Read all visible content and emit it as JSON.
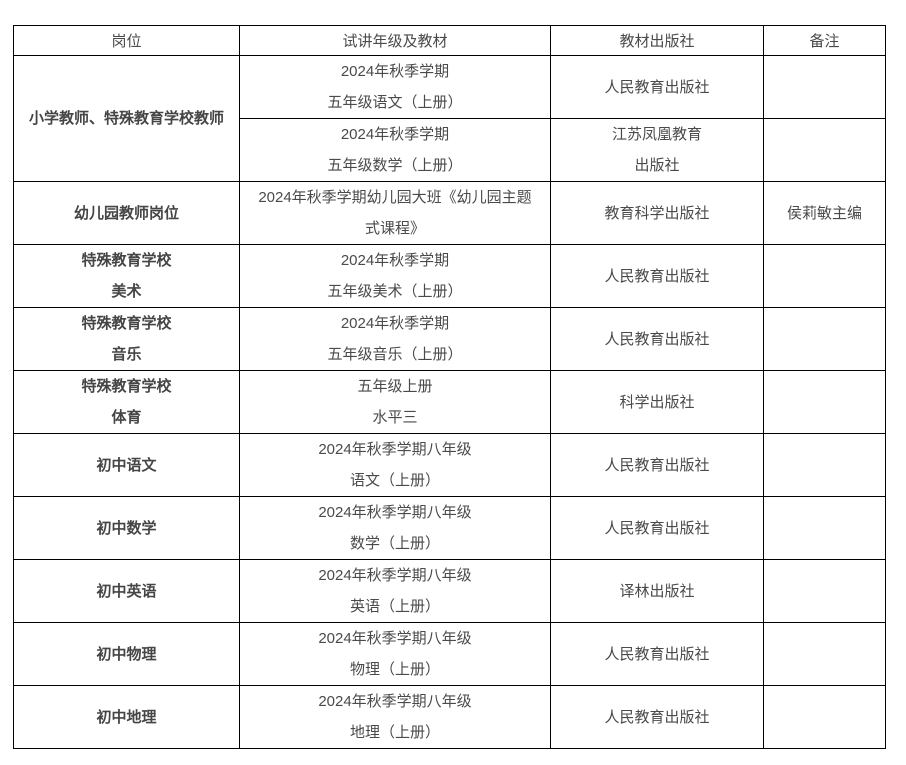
{
  "colors": {
    "background": "#ffffff",
    "border": "#000000",
    "text": "#4a4a4a",
    "position_text": "#454545"
  },
  "table": {
    "columns": [
      {
        "label": "岗位"
      },
      {
        "label": "试讲年级及教材"
      },
      {
        "label": "教材出版社"
      },
      {
        "label": "备注"
      }
    ],
    "rows": [
      {
        "position_lines": [
          "小学教师、特殊教育学校教师"
        ],
        "position_rowspan": 2,
        "material_lines": [
          "2024年秋季学期",
          "五年级语文（上册）"
        ],
        "publisher_lines": [
          "人民教育出版社"
        ],
        "remark_lines": []
      },
      {
        "material_lines": [
          "2024年秋季学期",
          "五年级数学（上册）"
        ],
        "publisher_lines": [
          "江苏凤凰教育",
          "出版社"
        ],
        "remark_lines": []
      },
      {
        "position_lines": [
          "幼儿园教师岗位"
        ],
        "material_lines": [
          "2024年秋季学期幼儿园大班《幼儿园主题",
          "式课程》"
        ],
        "publisher_lines": [
          "教育科学出版社"
        ],
        "remark_lines": [
          "侯莉敏主编"
        ]
      },
      {
        "position_lines": [
          "特殊教育学校",
          "美术"
        ],
        "material_lines": [
          "2024年秋季学期",
          "五年级美术（上册）"
        ],
        "publisher_lines": [
          "人民教育出版社"
        ],
        "remark_lines": []
      },
      {
        "position_lines": [
          "特殊教育学校",
          "音乐"
        ],
        "material_lines": [
          "2024年秋季学期",
          "五年级音乐（上册）"
        ],
        "publisher_lines": [
          "人民教育出版社"
        ],
        "remark_lines": []
      },
      {
        "position_lines": [
          "特殊教育学校",
          "体育"
        ],
        "material_lines": [
          "五年级上册",
          "水平三"
        ],
        "publisher_lines": [
          "科学出版社"
        ],
        "remark_lines": []
      },
      {
        "position_lines": [
          "初中语文"
        ],
        "material_lines": [
          "2024年秋季学期八年级",
          "语文（上册）"
        ],
        "publisher_lines": [
          "人民教育出版社"
        ],
        "remark_lines": []
      },
      {
        "position_lines": [
          "初中数学"
        ],
        "material_lines": [
          "2024年秋季学期八年级",
          "数学（上册）"
        ],
        "publisher_lines": [
          "人民教育出版社"
        ],
        "remark_lines": []
      },
      {
        "position_lines": [
          "初中英语"
        ],
        "material_lines": [
          "2024年秋季学期八年级",
          "英语（上册）"
        ],
        "publisher_lines": [
          "译林出版社"
        ],
        "remark_lines": []
      },
      {
        "position_lines": [
          "初中物理"
        ],
        "material_lines": [
          "2024年秋季学期八年级",
          "物理（上册）"
        ],
        "publisher_lines": [
          "人民教育出版社"
        ],
        "remark_lines": []
      },
      {
        "position_lines": [
          "初中地理"
        ],
        "material_lines": [
          "2024年秋季学期八年级",
          "地理（上册）"
        ],
        "publisher_lines": [
          "人民教育出版社"
        ],
        "remark_lines": []
      }
    ]
  }
}
